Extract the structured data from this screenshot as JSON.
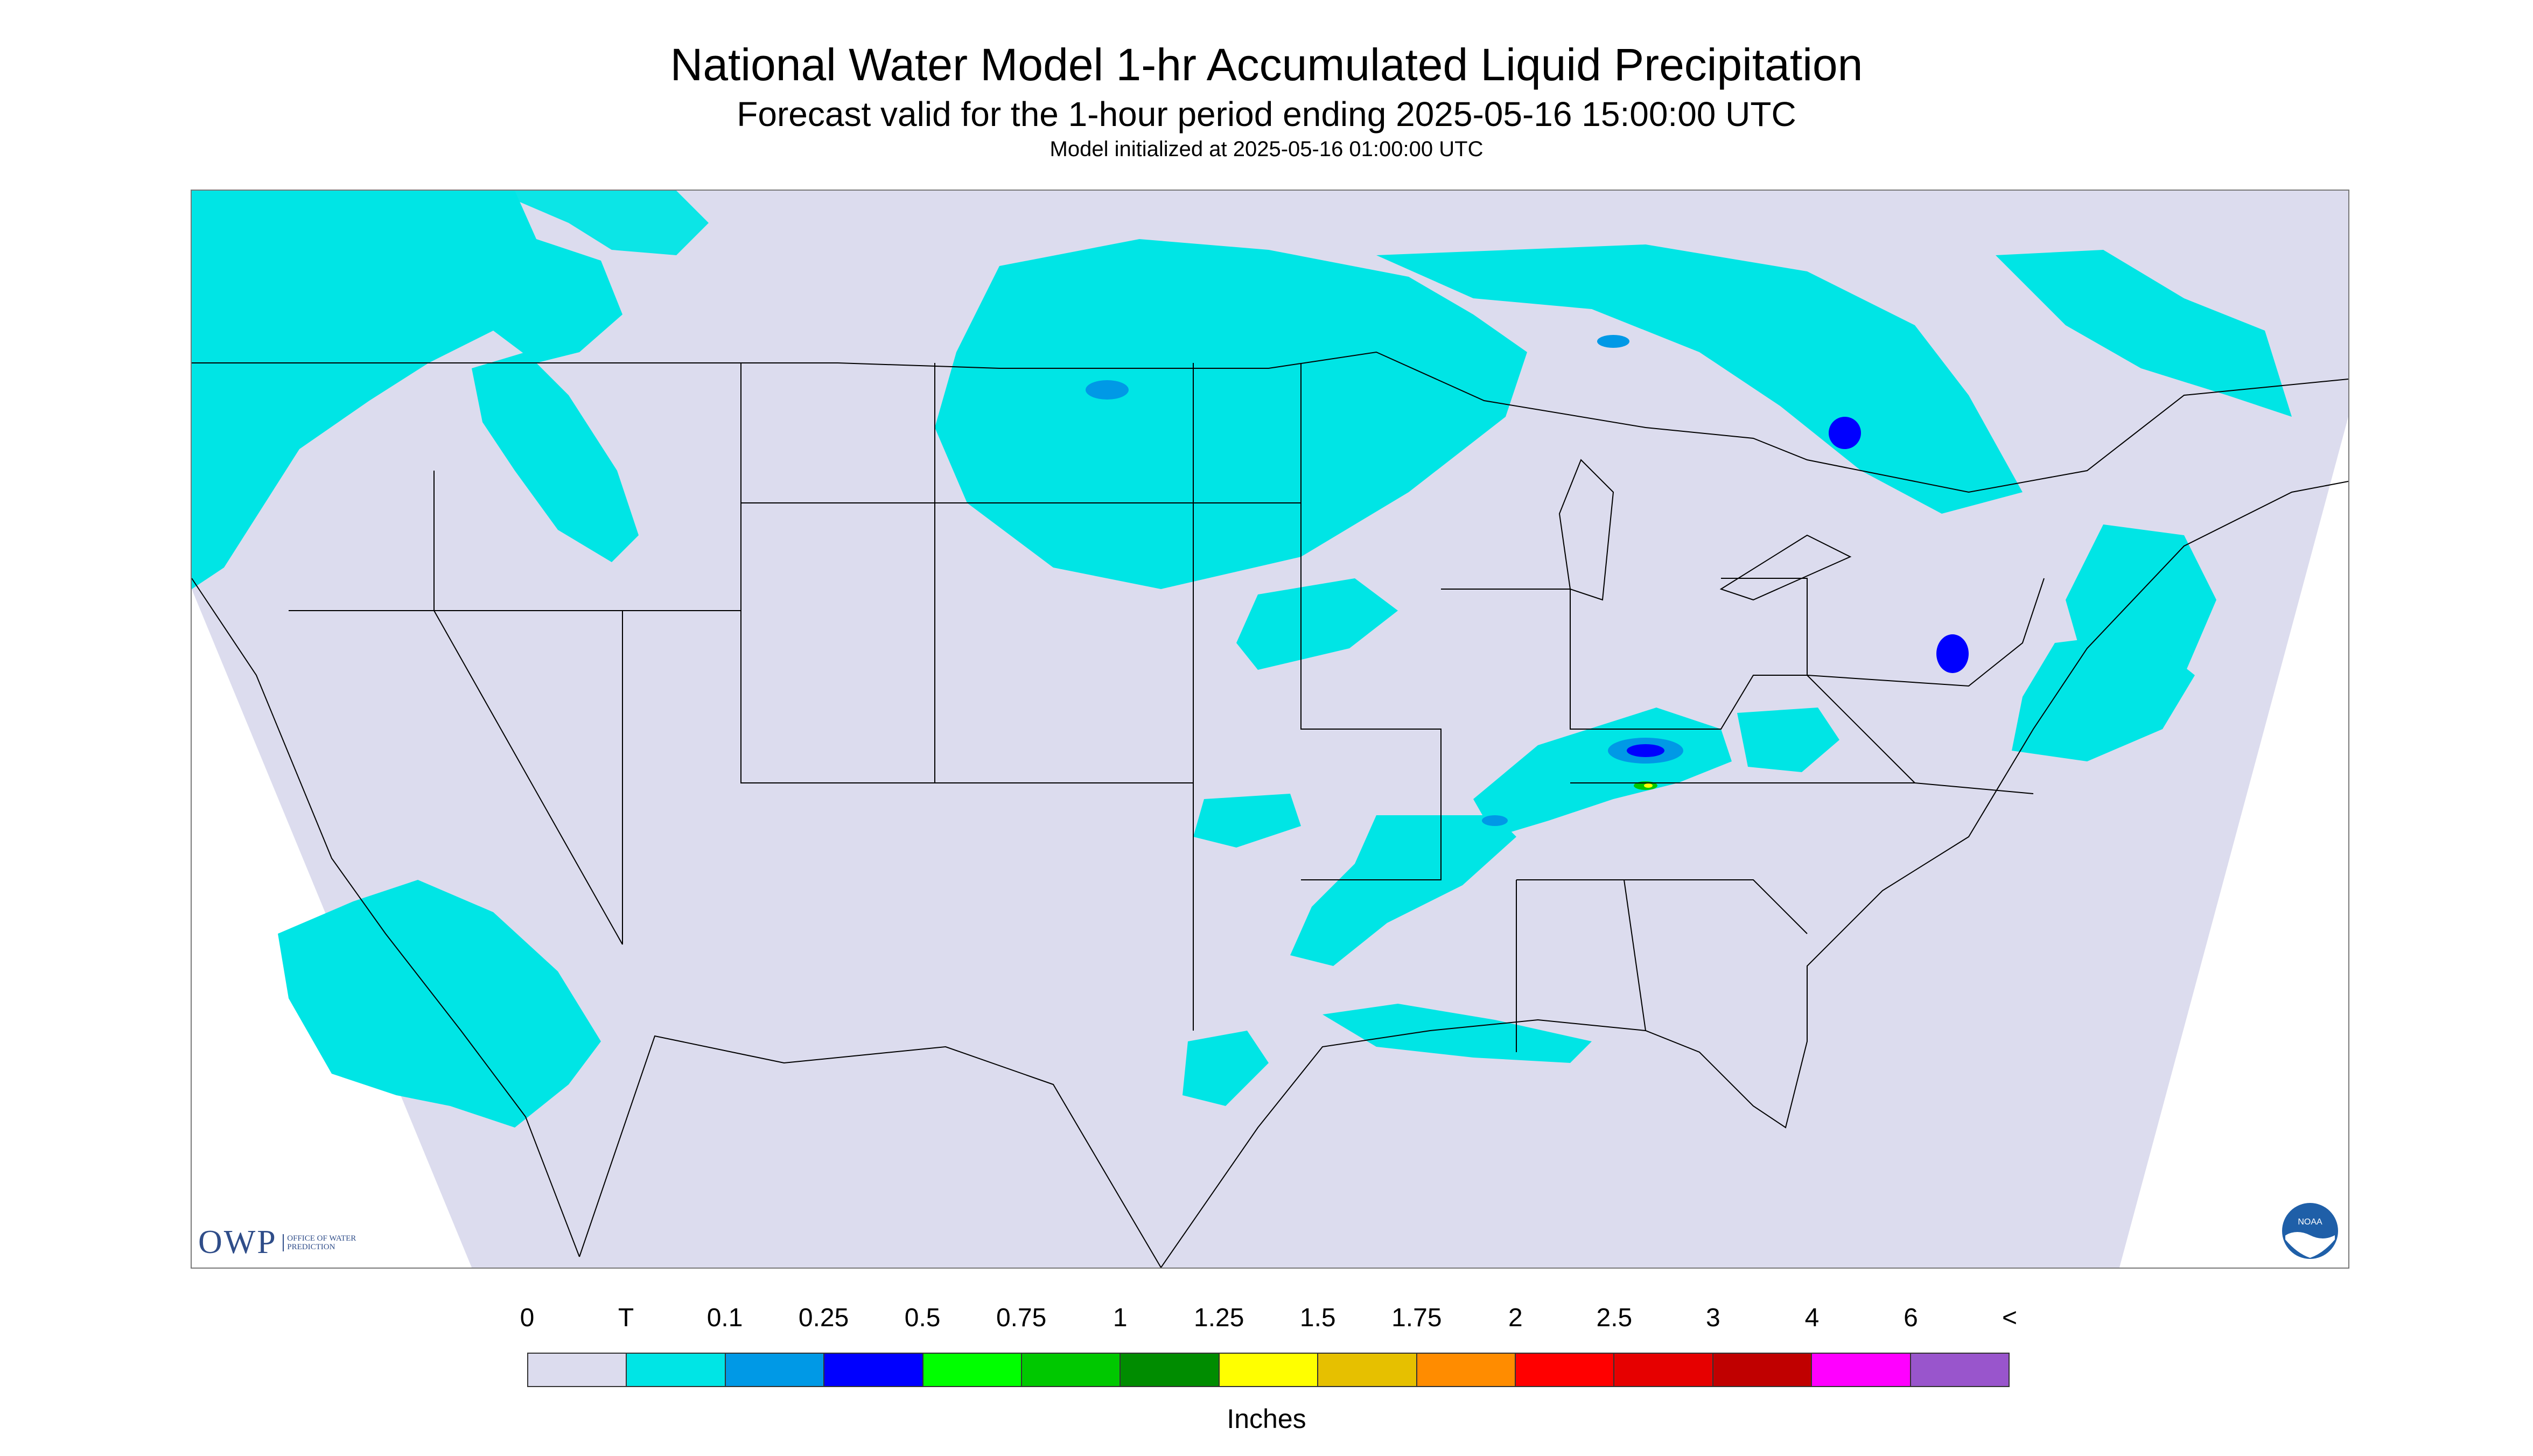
{
  "header": {
    "title": "National Water Model 1-hr Accumulated Liquid Precipitation",
    "subtitle": "Forecast valid for the 1-hour period ending 2025-05-16 15:00:00 UTC",
    "init_line": "Model initialized at 2025-05-16 01:00:00 UTC"
  },
  "logos": {
    "owp_mark": "OWP",
    "owp_text": "OFFICE OF WATER PREDICTION",
    "noaa_text": "NOAA"
  },
  "map": {
    "background_color": "#dcdcee",
    "outside_domain_color": "#ffffff",
    "region": "Continental United States"
  },
  "legend": {
    "units": "Inches",
    "tick_labels": [
      "0",
      "T",
      "0.1",
      "0.25",
      "0.5",
      "0.75",
      "1",
      "1.25",
      "1.5",
      "1.75",
      "2",
      "2.5",
      "3",
      "4",
      "6",
      "<"
    ],
    "colors": [
      "#dcdcee",
      "#00e5e5",
      "#0099e6",
      "#0000ff",
      "#00ff00",
      "#00c800",
      "#008c00",
      "#ffff00",
      "#e6c000",
      "#ff8c00",
      "#ff0000",
      "#e60000",
      "#c00000",
      "#ff00ff",
      "#9955cc"
    ]
  }
}
